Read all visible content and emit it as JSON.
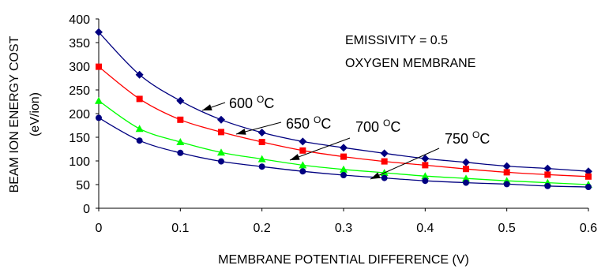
{
  "chart_data": {
    "type": "line",
    "xlabel": "MEMBRANE POTENTIAL DIFFERENCE (V)",
    "ylabel_lines": [
      "BEAM ION ENERGY COST",
      "(eV/ion)"
    ],
    "xlim": [
      0,
      0.6
    ],
    "ylim": [
      0,
      400
    ],
    "xticks": [
      "0",
      "0.1",
      "0.2",
      "0.3",
      "0.4",
      "0.5",
      "0.6"
    ],
    "yticks": [
      "0",
      "50",
      "100",
      "150",
      "200",
      "250",
      "300",
      "350",
      "400"
    ],
    "grid": false,
    "annotations": [
      "EMISSIVITY = 0.5",
      "OXYGEN MEMBRANE"
    ],
    "x": [
      0,
      0.05,
      0.1,
      0.15,
      0.2,
      0.25,
      0.3,
      0.35,
      0.4,
      0.45,
      0.5,
      0.55,
      0.6
    ],
    "series": [
      {
        "label_base": "600 ",
        "label_sup": "O",
        "label_unit": "C",
        "color": "#000080",
        "marker": "diamond",
        "values": [
          372,
          282,
          227,
          187,
          160,
          141,
          128,
          116,
          105,
          97,
          89,
          84,
          78
        ]
      },
      {
        "label_base": "650 ",
        "label_sup": "O",
        "label_unit": "C",
        "color": "#ff0000",
        "marker": "square",
        "values": [
          299,
          231,
          187,
          161,
          140,
          122,
          109,
          99,
          91,
          83,
          76,
          71,
          67
        ]
      },
      {
        "label_base": "700 ",
        "label_sup": "O",
        "label_unit": "C",
        "color": "#00ff00",
        "marker": "triangle",
        "values": [
          227,
          168,
          140,
          118,
          104,
          91,
          82,
          75,
          68,
          63,
          58,
          54,
          50
        ]
      },
      {
        "label_base": "750 ",
        "label_sup": "O",
        "label_unit": "C",
        "color": "#000080",
        "marker": "circle",
        "values": [
          191,
          143,
          117,
          99,
          88,
          78,
          70,
          64,
          58,
          54,
          51,
          47,
          45
        ]
      }
    ]
  }
}
